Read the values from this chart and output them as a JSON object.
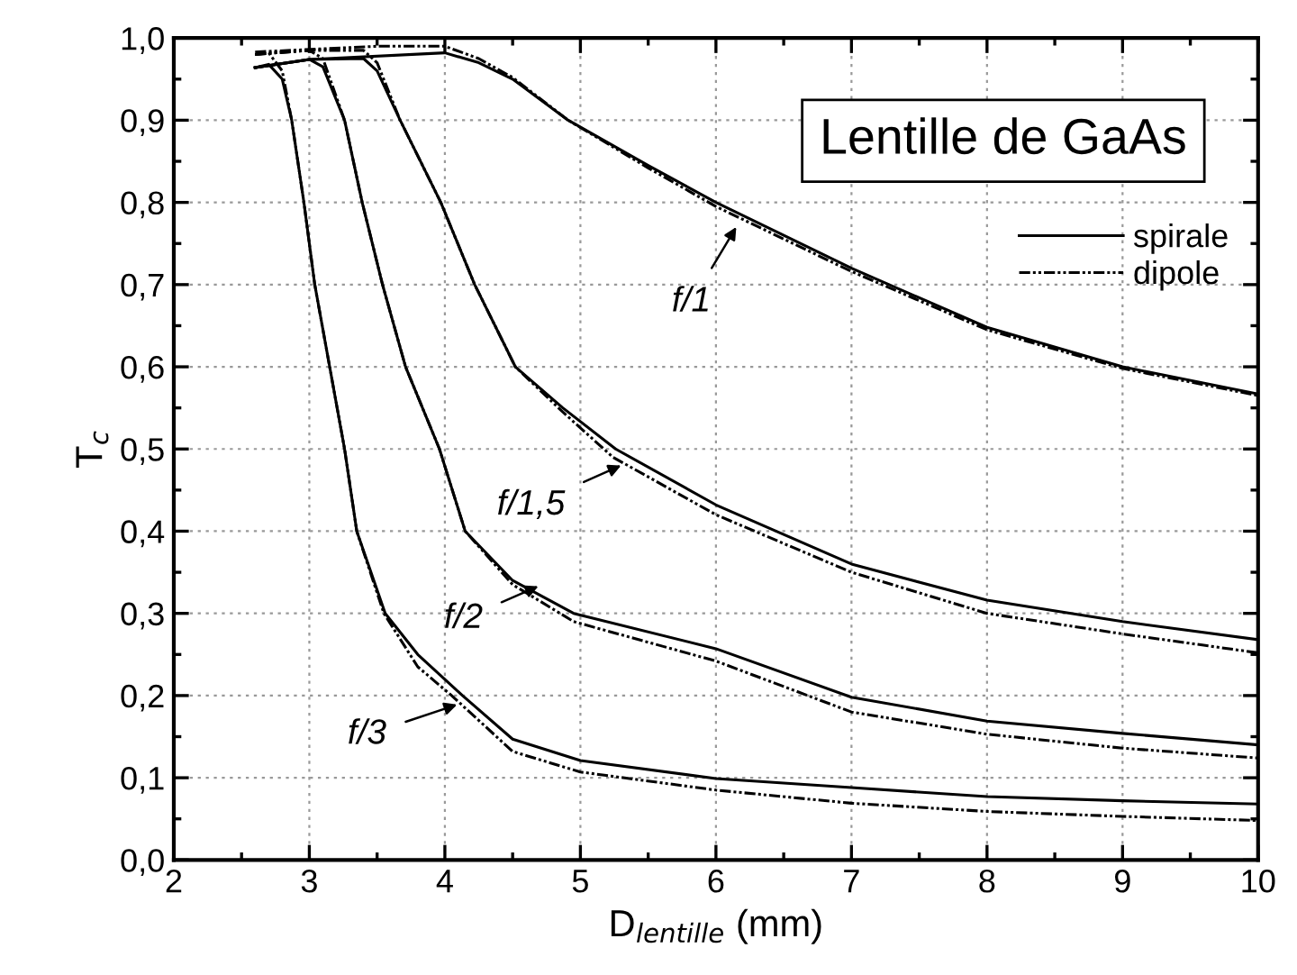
{
  "chart_data": {
    "type": "line",
    "title": "Lentille de GaAs",
    "xlabel": "D$_{lentille}$ (mm)",
    "ylabel": "T$_{c}$",
    "xlim": [
      2,
      10
    ],
    "ylim": [
      0,
      1.0
    ],
    "xticks": [
      2,
      3,
      4,
      5,
      6,
      7,
      8,
      9,
      10
    ],
    "yticks": [
      {
        "value": 0,
        "label": "0,0"
      },
      {
        "value": 0.1,
        "label": "0,1"
      },
      {
        "value": 0.2,
        "label": "0,2"
      },
      {
        "value": 0.3,
        "label": "0,3"
      },
      {
        "value": 0.4,
        "label": "0,4"
      },
      {
        "value": 0.5,
        "label": "0,5"
      },
      {
        "value": 0.6,
        "label": "0,6"
      },
      {
        "value": 0.7,
        "label": "0,7"
      },
      {
        "value": 0.8,
        "label": "0,8"
      },
      {
        "value": 0.9,
        "label": "0,9"
      },
      {
        "value": 1.0,
        "label": "1,0"
      }
    ],
    "grid": true,
    "legend": "top right",
    "marker": "none",
    "series": [
      {
        "name": "spirale",
        "color": "#000000",
        "line_style": "solid",
        "x": [
          2.6,
          3.0,
          4.0,
          4.25,
          4.5,
          4.91,
          5.5,
          6,
          7,
          8,
          9,
          10
        ],
        "values": [
          0.964,
          0.974,
          0.982,
          0.97,
          0.95,
          0.9,
          0.845,
          0.8,
          0.72,
          0.648,
          0.6,
          0.567
        ]
      },
      {
        "name": "dipole",
        "color": "#000000",
        "line_style": "dotted",
        "x": [
          2.6,
          3.5,
          4.0,
          4.25,
          4.5,
          4.91,
          5.5,
          6,
          7,
          8,
          9,
          10
        ],
        "values": [
          0.983,
          0.99,
          0.99,
          0.975,
          0.952,
          0.9,
          0.842,
          0.795,
          0.716,
          0.645,
          0.598,
          0.565
        ]
      },
      {
        "color": "#000000",
        "line_style": "solid",
        "x": [
          2.6,
          3.0,
          3.4,
          3.5,
          3.67,
          3.97,
          4.22,
          4.52,
          4.87,
          5.26,
          6,
          7,
          8,
          9,
          10
        ],
        "values": [
          0.964,
          0.974,
          0.975,
          0.96,
          0.9,
          0.8,
          0.7,
          0.6,
          0.55,
          0.5,
          0.432,
          0.36,
          0.316,
          0.29,
          0.268
        ]
      },
      {
        "color": "#000000",
        "line_style": "dotted",
        "x": [
          2.6,
          3.0,
          3.4,
          3.5,
          3.67,
          3.97,
          4.22,
          4.52,
          4.87,
          5.24,
          6,
          7,
          8,
          9,
          10
        ],
        "values": [
          0.98,
          0.985,
          0.985,
          0.97,
          0.9,
          0.8,
          0.7,
          0.6,
          0.545,
          0.49,
          0.42,
          0.35,
          0.3,
          0.275,
          0.252
        ]
      },
      {
        "color": "#000000",
        "line_style": "solid",
        "x": [
          2.6,
          3.0,
          3.1,
          3.26,
          3.39,
          3.54,
          3.71,
          3.96,
          4.15,
          4.5,
          4.95,
          6,
          7,
          8,
          9,
          10
        ],
        "values": [
          0.964,
          0.974,
          0.965,
          0.9,
          0.8,
          0.7,
          0.6,
          0.5,
          0.4,
          0.34,
          0.3,
          0.257,
          0.198,
          0.169,
          0.154,
          0.14
        ]
      },
      {
        "color": "#000000",
        "line_style": "dotted",
        "x": [
          2.6,
          3.0,
          3.1,
          3.26,
          3.39,
          3.54,
          3.71,
          3.96,
          4.15,
          4.5,
          4.95,
          6,
          7,
          8,
          9,
          10
        ],
        "values": [
          0.98,
          0.985,
          0.975,
          0.9,
          0.8,
          0.7,
          0.6,
          0.5,
          0.4,
          0.335,
          0.29,
          0.242,
          0.18,
          0.153,
          0.136,
          0.124
        ]
      },
      {
        "color": "#000000",
        "line_style": "solid",
        "x": [
          2.6,
          2.7,
          2.8,
          2.87,
          2.96,
          3.04,
          3.15,
          3.26,
          3.35,
          3.56,
          3.8,
          4.13,
          4.5,
          5,
          6,
          7,
          8,
          9,
          10
        ],
        "values": [
          0.964,
          0.968,
          0.95,
          0.9,
          0.8,
          0.7,
          0.6,
          0.5,
          0.4,
          0.3,
          0.25,
          0.2,
          0.147,
          0.121,
          0.099,
          0.088,
          0.077,
          0.072,
          0.068
        ]
      },
      {
        "color": "#000000",
        "line_style": "dotted",
        "x": [
          2.6,
          2.7,
          2.8,
          2.87,
          2.96,
          3.04,
          3.15,
          3.26,
          3.35,
          3.55,
          3.8,
          4.05,
          4.5,
          5,
          6,
          7,
          8,
          9,
          10
        ],
        "values": [
          0.98,
          0.982,
          0.96,
          0.9,
          0.8,
          0.7,
          0.6,
          0.5,
          0.4,
          0.3,
          0.235,
          0.2,
          0.132,
          0.107,
          0.085,
          0.069,
          0.059,
          0.053,
          0.048
        ]
      }
    ],
    "annotations": [
      {
        "text": "f/1",
        "x": 6.15,
        "y": 0.77
      },
      {
        "text": "f/1,5",
        "x": 5.3,
        "y": 0.48
      },
      {
        "text": "f/2",
        "x": 4.69,
        "y": 0.333
      },
      {
        "text": "f/3",
        "x": 4.09,
        "y": 0.189
      }
    ]
  }
}
